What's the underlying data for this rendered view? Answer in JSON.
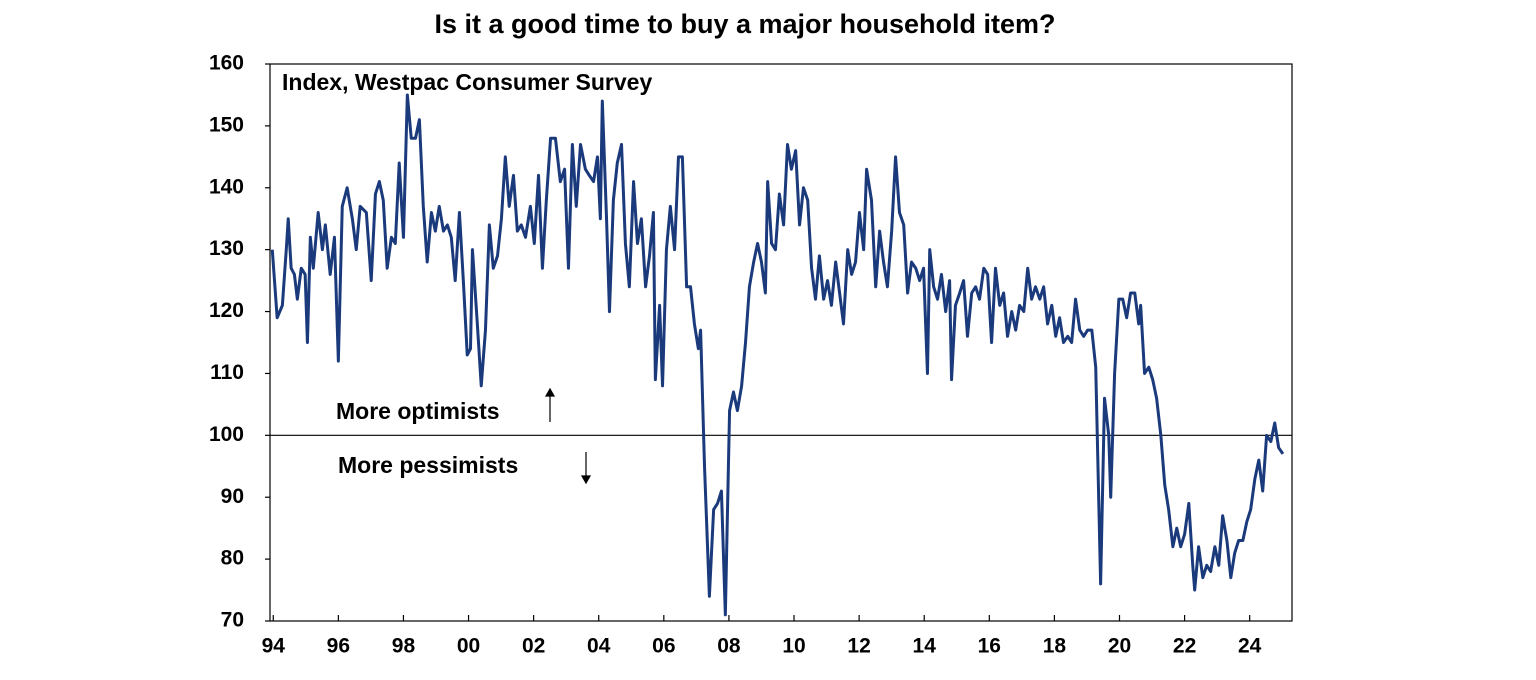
{
  "chart_data": {
    "type": "line",
    "title": "Is it a good time to buy a major household item?",
    "annotations": [
      "Index, Westpac Consumer Survey",
      "More optimists",
      "More pessimists"
    ],
    "color": "#1a3a7c",
    "hline": 100,
    "xlim": [
      1993.9,
      2025.3
    ],
    "ylim": [
      70,
      160
    ],
    "yticks": [
      70,
      80,
      90,
      100,
      110,
      120,
      130,
      140,
      150,
      160
    ],
    "xticks": [
      {
        "value": 1994,
        "label": "94"
      },
      {
        "value": 1996,
        "label": "96"
      },
      {
        "value": 1998,
        "label": "98"
      },
      {
        "value": 2000,
        "label": "00"
      },
      {
        "value": 2002,
        "label": "02"
      },
      {
        "value": 2004,
        "label": "04"
      },
      {
        "value": 2006,
        "label": "06"
      },
      {
        "value": 2008,
        "label": "08"
      },
      {
        "value": 2010,
        "label": "10"
      },
      {
        "value": 2012,
        "label": "12"
      },
      {
        "value": 2014,
        "label": "14"
      },
      {
        "value": 2016,
        "label": "16"
      },
      {
        "value": 2018,
        "label": "18"
      },
      {
        "value": 2020,
        "label": "20"
      },
      {
        "value": 2022,
        "label": "22"
      },
      {
        "value": 2024,
        "label": "24"
      }
    ],
    "x": [
      1993.97,
      1994.12,
      1994.28,
      1994.4,
      1994.46,
      1994.55,
      1994.65,
      1994.74,
      1994.86,
      1994.98,
      1995.05,
      1995.14,
      1995.23,
      1995.38,
      1995.51,
      1995.6,
      1995.75,
      1995.88,
      1996.0,
      1996.12,
      1996.27,
      1996.43,
      1996.55,
      1996.67,
      1996.86,
      1997.01,
      1997.14,
      1997.26,
      1997.38,
      1997.5,
      1997.63,
      1997.75,
      1997.87,
      1998.0,
      1998.12,
      1998.24,
      1998.37,
      1998.49,
      1998.61,
      1998.73,
      1998.86,
      1998.98,
      1999.1,
      1999.23,
      1999.35,
      1999.47,
      1999.59,
      1999.72,
      1999.84,
      1999.96,
      2000.06,
      2000.12,
      2000.27,
      2000.39,
      2000.52,
      2000.64,
      2000.76,
      2000.89,
      2001.01,
      2001.13,
      2001.25,
      2001.38,
      2001.5,
      2001.62,
      2001.75,
      2001.9,
      2002.02,
      2002.15,
      2002.27,
      2002.39,
      2002.52,
      2002.67,
      2002.82,
      2002.95,
      2003.07,
      2003.19,
      2003.31,
      2003.44,
      2003.59,
      2003.71,
      2003.84,
      2003.96,
      2004.05,
      2004.11,
      2004.24,
      2004.33,
      2004.45,
      2004.57,
      2004.7,
      2004.82,
      2004.94,
      2005.07,
      2005.19,
      2005.31,
      2005.44,
      2005.56,
      2005.68,
      2005.74,
      2005.87,
      2005.96,
      2006.08,
      2006.2,
      2006.33,
      2006.45,
      2006.57,
      2006.7,
      2006.82,
      2006.94,
      2007.06,
      2007.13,
      2007.25,
      2007.4,
      2007.53,
      2007.65,
      2007.77,
      2007.89,
      2008.02,
      2008.14,
      2008.26,
      2008.39,
      2008.51,
      2008.63,
      2008.76,
      2008.88,
      2009.0,
      2009.12,
      2009.19,
      2009.31,
      2009.43,
      2009.55,
      2009.68,
      2009.8,
      2009.92,
      2010.05,
      2010.17,
      2010.29,
      2010.42,
      2010.54,
      2010.66,
      2010.78,
      2010.91,
      2011.03,
      2011.15,
      2011.28,
      2011.4,
      2011.52,
      2011.65,
      2011.77,
      2011.89,
      2012.01,
      2012.14,
      2012.23,
      2012.38,
      2012.51,
      2012.63,
      2012.75,
      2012.87,
      2013.0,
      2013.12,
      2013.24,
      2013.37,
      2013.49,
      2013.61,
      2013.74,
      2013.86,
      2013.98,
      2014.1,
      2014.17,
      2014.29,
      2014.41,
      2014.53,
      2014.66,
      2014.78,
      2014.84,
      2014.96,
      2015.09,
      2015.21,
      2015.33,
      2015.46,
      2015.58,
      2015.7,
      2015.83,
      2015.95,
      2016.07,
      2016.19,
      2016.32,
      2016.44,
      2016.56,
      2016.69,
      2016.81,
      2016.93,
      2017.06,
      2017.18,
      2017.3,
      2017.42,
      2017.55,
      2017.67,
      2017.79,
      2017.92,
      2018.04,
      2018.16,
      2018.28,
      2018.41,
      2018.53,
      2018.65,
      2018.78,
      2018.9,
      2019.02,
      2019.15,
      2019.27,
      2019.42,
      2019.54,
      2019.67,
      2019.73,
      2019.85,
      2019.98,
      2020.1,
      2020.22,
      2020.34,
      2020.47,
      2020.59,
      2020.65,
      2020.77,
      2020.9,
      2021.02,
      2021.14,
      2021.27,
      2021.39,
      2021.51,
      2021.64,
      2021.76,
      2021.88,
      2022.0,
      2022.13,
      2022.25,
      2022.31,
      2022.43,
      2022.56,
      2022.68,
      2022.8,
      2022.93,
      2023.05,
      2023.17,
      2023.3,
      2023.42,
      2023.54,
      2023.66,
      2023.79,
      2023.91,
      2024.03,
      2024.16,
      2024.28,
      2024.4,
      2024.52,
      2024.65,
      2024.77,
      2024.89,
      2025.02
    ],
    "values": [
      130,
      119,
      121,
      130,
      135,
      127,
      126,
      122,
      127,
      126,
      115,
      132,
      127,
      136,
      130,
      134,
      126,
      132,
      112,
      137,
      140,
      135,
      130,
      137,
      136,
      125,
      139,
      141,
      138,
      127,
      132,
      131,
      144,
      132,
      155,
      148,
      148,
      151,
      137,
      128,
      136,
      133,
      137,
      133,
      134,
      132,
      125,
      136,
      125,
      113,
      114,
      130,
      118,
      108,
      117,
      134,
      127,
      129,
      135,
      145,
      137,
      142,
      133,
      134,
      132,
      137,
      131,
      142,
      127,
      138,
      148,
      148,
      141,
      143,
      127,
      147,
      137,
      147,
      143,
      142,
      141,
      145,
      135,
      154,
      135,
      120,
      138,
      144,
      147,
      131,
      124,
      141,
      131,
      135,
      124,
      129,
      136,
      109,
      121,
      108,
      130,
      137,
      130,
      145,
      145,
      124,
      124,
      118,
      114,
      117,
      95,
      74,
      88,
      89,
      91,
      71,
      104,
      107,
      104,
      108,
      115,
      124,
      128,
      131,
      128,
      123,
      141,
      131,
      130,
      139,
      134,
      147,
      143,
      146,
      134,
      140,
      138,
      127,
      122,
      129,
      122,
      125,
      121,
      128,
      123,
      118,
      130,
      126,
      128,
      136,
      130,
      143,
      138,
      124,
      133,
      128,
      124,
      133,
      145,
      136,
      134,
      123,
      128,
      127,
      125,
      127,
      110,
      130,
      124,
      122,
      126,
      120,
      125,
      109,
      121,
      123,
      125,
      116,
      123,
      124,
      122,
      127,
      126,
      115,
      127,
      121,
      123,
      116,
      120,
      117,
      121,
      120,
      127,
      122,
      124,
      122,
      124,
      118,
      121,
      116,
      119,
      115,
      116,
      115,
      122,
      117,
      116,
      117,
      117,
      111,
      76,
      106,
      100,
      90,
      110,
      122,
      122,
      119,
      123,
      123,
      118,
      121,
      110,
      111,
      109,
      106,
      100,
      92,
      88,
      82,
      85,
      82,
      84,
      89,
      79,
      75,
      82,
      77,
      79,
      78,
      82,
      79,
      87,
      83,
      77,
      81,
      83,
      83,
      86,
      88,
      93,
      96,
      91,
      100,
      99,
      102,
      98,
      97
    ]
  }
}
